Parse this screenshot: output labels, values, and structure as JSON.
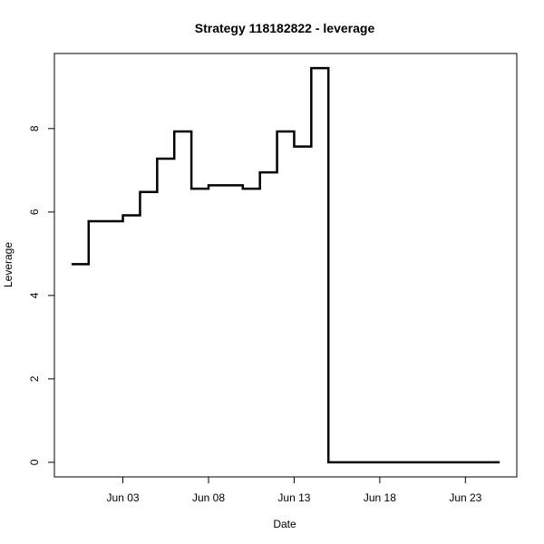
{
  "chart_data": {
    "type": "line",
    "step": true,
    "title": "Strategy 118182822 - leverage",
    "xlabel": "Date",
    "ylabel": "Leverage",
    "x_unit": "date",
    "xlim": [
      "2024-05-30",
      "2024-06-26"
    ],
    "ylim": [
      -0.35,
      9.8
    ],
    "grid": false,
    "legend": "none",
    "x_ticks": [
      {
        "date": "2024-06-03",
        "label": "Jun 03"
      },
      {
        "date": "2024-06-08",
        "label": "Jun 08"
      },
      {
        "date": "2024-06-13",
        "label": "Jun 13"
      },
      {
        "date": "2024-06-18",
        "label": "Jun 18"
      },
      {
        "date": "2024-06-23",
        "label": "Jun 23"
      }
    ],
    "y_ticks": [
      0,
      2,
      4,
      6,
      8
    ],
    "series": [
      {
        "color": "#000000",
        "points": [
          {
            "x": "2024-05-31",
            "y": 4.75
          },
          {
            "x": "2024-06-01",
            "y": 5.78
          },
          {
            "x": "2024-06-02",
            "y": 5.78
          },
          {
            "x": "2024-06-03",
            "y": 5.92
          },
          {
            "x": "2024-06-04",
            "y": 6.48
          },
          {
            "x": "2024-06-05",
            "y": 7.28
          },
          {
            "x": "2024-06-06",
            "y": 7.93
          },
          {
            "x": "2024-06-07",
            "y": 6.56
          },
          {
            "x": "2024-06-08",
            "y": 6.64
          },
          {
            "x": "2024-06-09",
            "y": 6.64
          },
          {
            "x": "2024-06-10",
            "y": 6.56
          },
          {
            "x": "2024-06-11",
            "y": 6.95
          },
          {
            "x": "2024-06-12",
            "y": 7.93
          },
          {
            "x": "2024-06-13",
            "y": 7.57
          },
          {
            "x": "2024-06-14",
            "y": 9.45
          },
          {
            "x": "2024-06-15",
            "y": 0.0
          },
          {
            "x": "2024-06-25",
            "y": 0.0
          }
        ]
      }
    ]
  }
}
